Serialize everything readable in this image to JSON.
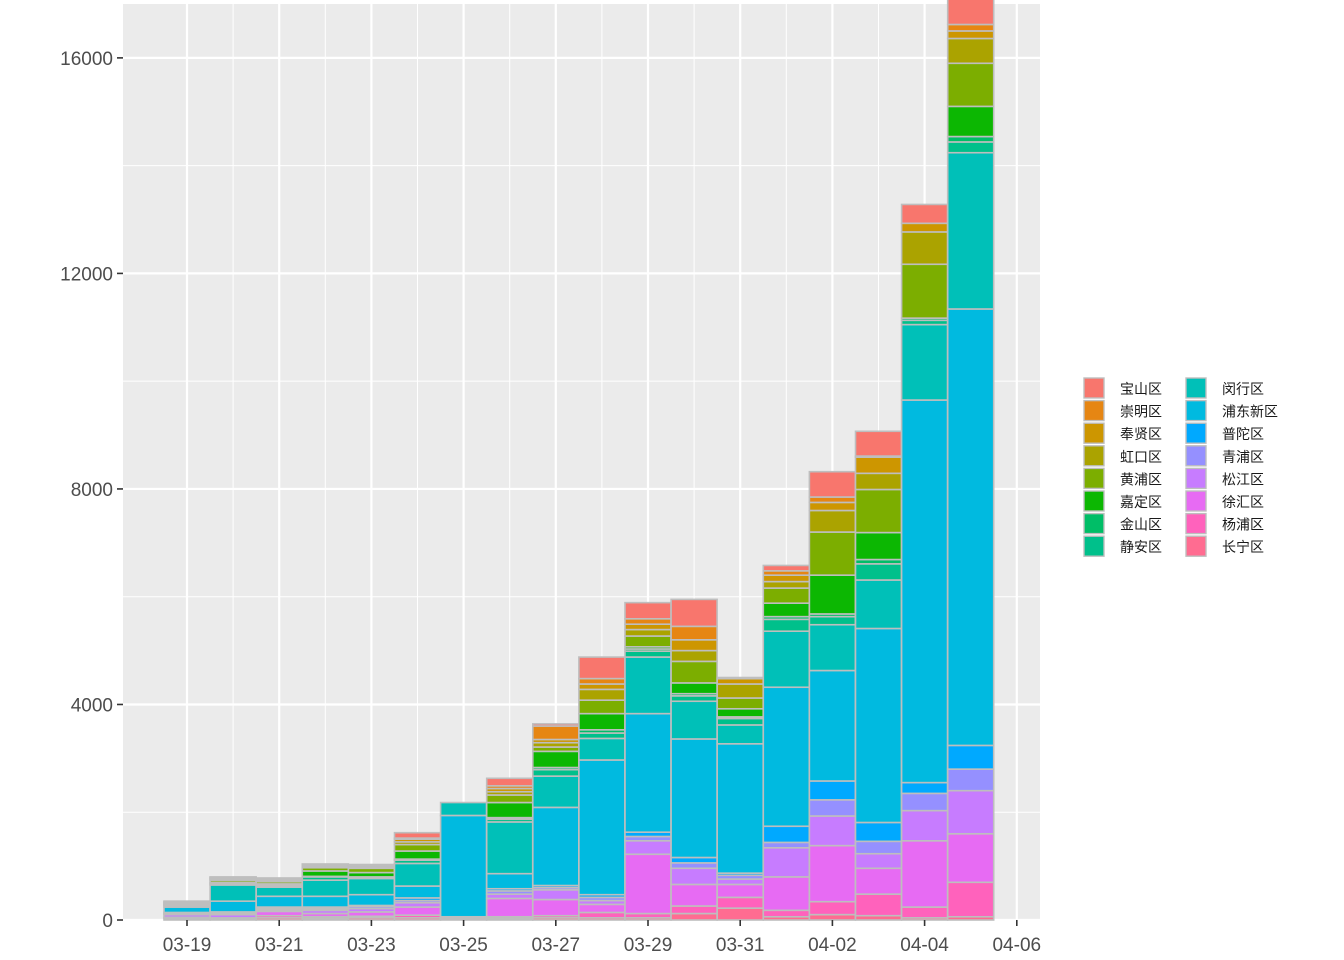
{
  "chart_data": {
    "type": "bar",
    "stacked": true,
    "x_ticks": [
      "03-19",
      "03-21",
      "03-23",
      "03-25",
      "03-27",
      "03-29",
      "03-31",
      "04-02",
      "04-04",
      "04-06"
    ],
    "categories": [
      "03-19",
      "03-20",
      "03-21",
      "03-22",
      "03-23",
      "03-24",
      "03-25",
      "03-26",
      "03-27",
      "03-28",
      "03-29",
      "03-30",
      "03-31",
      "04-01",
      "04-02",
      "04-03",
      "04-04",
      "04-05"
    ],
    "ylim": [
      0,
      17000
    ],
    "y_ticks": [
      0,
      4000,
      8000,
      12000,
      16000
    ],
    "grid": true,
    "legend_position": "right",
    "series": [
      {
        "name": "长宁区",
        "color": "#FF6C91",
        "values": [
          30,
          20,
          40,
          30,
          40,
          40,
          10,
          30,
          40,
          40,
          40,
          120,
          220,
          60,
          100,
          80,
          40,
          60
        ]
      },
      {
        "name": "杨浦区",
        "color": "#FF62BC",
        "values": [
          20,
          20,
          40,
          30,
          30,
          50,
          10,
          30,
          40,
          100,
          80,
          140,
          200,
          120,
          240,
          400,
          200,
          640
        ]
      },
      {
        "name": "徐汇区",
        "color": "#E76BF3",
        "values": [
          0,
          0,
          80,
          60,
          80,
          150,
          20,
          340,
          300,
          150,
          1100,
          400,
          240,
          620,
          1040,
          480,
          1230,
          900
        ]
      },
      {
        "name": "松江区",
        "color": "#C77CFF",
        "values": [
          50,
          60,
          30,
          60,
          60,
          80,
          20,
          80,
          180,
          70,
          250,
          300,
          100,
          540,
          550,
          270,
          560,
          800
        ]
      },
      {
        "name": "青浦区",
        "color": "#9590FF",
        "values": [
          20,
          30,
          30,
          30,
          40,
          40,
          0,
          60,
          40,
          60,
          80,
          100,
          70,
          100,
          300,
          230,
          320,
          400
        ]
      },
      {
        "name": "普陀区",
        "color": "#00A9FF",
        "values": [
          20,
          20,
          20,
          30,
          20,
          50,
          0,
          40,
          40,
          50,
          80,
          100,
          40,
          300,
          350,
          350,
          200,
          440
        ]
      },
      {
        "name": "浦东新区",
        "color": "#00BAE0",
        "values": [
          100,
          200,
          200,
          200,
          200,
          220,
          1880,
          280,
          1450,
          2500,
          2200,
          2200,
          2400,
          2580,
          2050,
          3600,
          7100,
          8100
        ]
      },
      {
        "name": "闵行区",
        "color": "#00C0B8",
        "values": [
          30,
          300,
          170,
          300,
          300,
          420,
          240,
          960,
          580,
          400,
          1050,
          700,
          350,
          1040,
          850,
          900,
          1400,
          2900
        ]
      },
      {
        "name": "静安区",
        "color": "#00C08B",
        "values": [
          10,
          20,
          30,
          60,
          20,
          60,
          0,
          50,
          120,
          100,
          110,
          100,
          120,
          220,
          150,
          300,
          80,
          200
        ]
      },
      {
        "name": "金山区",
        "color": "#00BE67",
        "values": [
          10,
          10,
          10,
          10,
          10,
          20,
          0,
          30,
          40,
          60,
          40,
          40,
          30,
          50,
          50,
          80,
          40,
          100
        ]
      },
      {
        "name": "嘉定区",
        "color": "#0CB702",
        "values": [
          10,
          20,
          20,
          100,
          80,
          150,
          0,
          280,
          300,
          300,
          40,
          200,
          150,
          250,
          720,
          500,
          0,
          560
        ]
      },
      {
        "name": "黄浦区",
        "color": "#7CAE00",
        "values": [
          20,
          40,
          40,
          60,
          80,
          120,
          0,
          140,
          80,
          250,
          200,
          400,
          200,
          280,
          800,
          800,
          1000,
          800
        ]
      },
      {
        "name": "虹口区",
        "color": "#ABA300",
        "values": [
          20,
          20,
          20,
          20,
          20,
          50,
          0,
          60,
          80,
          200,
          120,
          200,
          260,
          120,
          400,
          300,
          600,
          460
        ]
      },
      {
        "name": "奉贤区",
        "color": "#CD9600",
        "values": [
          10,
          20,
          20,
          20,
          20,
          50,
          0,
          60,
          60,
          100,
          100,
          200,
          100,
          120,
          150,
          300,
          160,
          140
        ]
      },
      {
        "name": "崇明区",
        "color": "#E68613",
        "values": [
          0,
          10,
          10,
          10,
          10,
          20,
          0,
          50,
          250,
          100,
          100,
          250,
          20,
          80,
          100,
          20,
          0,
          120
        ]
      },
      {
        "name": "宝山区",
        "color": "#F8766D",
        "values": [
          0,
          10,
          20,
          20,
          20,
          100,
          0,
          140,
          40,
          400,
          300,
          500,
          0,
          100,
          470,
          460,
          350,
          1010
        ]
      }
    ]
  }
}
